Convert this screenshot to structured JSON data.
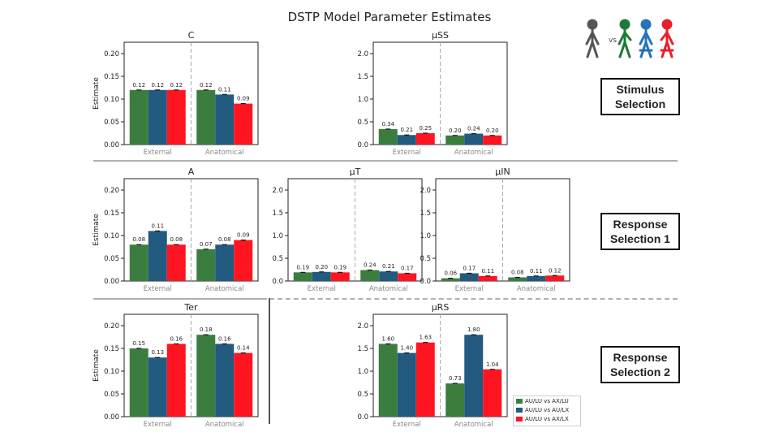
{
  "title": "DSTP Model Parameter Estimates",
  "colors": {
    "green": "#3b7d3f",
    "blue": "#225a80",
    "red": "#ff1421"
  },
  "legend": [
    {
      "label": "AU/LU vs AX/LU",
      "color": "#3b7d3f"
    },
    {
      "label": "AU/LU vs AU/LX",
      "color": "#225a80"
    },
    {
      "label": "AU/LU vs AX/LX",
      "color": "#ff1421"
    }
  ],
  "figure_legend": {
    "vs_label": "vs",
    "icon": "stick-figure-icon"
  },
  "sections": [
    {
      "label_line1": "Stimulus",
      "label_line2": "Selection"
    },
    {
      "label_line1": "Response",
      "label_line2": "Selection 1"
    },
    {
      "label_line1": "Response",
      "label_line2": "Selection 2"
    }
  ],
  "chart_data": [
    {
      "type": "bar",
      "title": "C",
      "ylabel": "Estimate",
      "ylim": [
        0,
        0.225
      ],
      "yticks": [
        "0.00",
        "0.05",
        "0.10",
        "0.15",
        "0.20"
      ],
      "yvals": [
        0,
        0.05,
        0.1,
        0.15,
        0.2
      ],
      "groups": [
        "External",
        "Anatomical"
      ],
      "values": [
        [
          0.12,
          0.12,
          0.12
        ],
        [
          0.12,
          0.11,
          0.09
        ]
      ],
      "labels": [
        [
          "0.12",
          "0.12",
          "0.12"
        ],
        [
          "0.12",
          "0.11",
          "0.09"
        ]
      ]
    },
    {
      "type": "bar",
      "title": "μSS",
      "ylabel": "",
      "ylim": [
        0,
        2.25
      ],
      "yticks": [
        "0.0",
        "0.5",
        "1.0",
        "1.5",
        "2.0"
      ],
      "yvals": [
        0,
        0.5,
        1.0,
        1.5,
        2.0
      ],
      "groups": [
        "External",
        "Anatomical"
      ],
      "values": [
        [
          0.34,
          0.21,
          0.25
        ],
        [
          0.2,
          0.24,
          0.2
        ]
      ],
      "labels": [
        [
          "0.34",
          "0.21",
          "0.25"
        ],
        [
          "0.20",
          "0.24",
          "0.20"
        ]
      ]
    },
    {
      "type": "bar",
      "title": "A",
      "ylabel": "Estimate",
      "ylim": [
        0,
        0.225
      ],
      "yticks": [
        "0.00",
        "0.05",
        "0.10",
        "0.15",
        "0.20"
      ],
      "yvals": [
        0,
        0.05,
        0.1,
        0.15,
        0.2
      ],
      "groups": [
        "External",
        "Anatomical"
      ],
      "values": [
        [
          0.08,
          0.11,
          0.08
        ],
        [
          0.07,
          0.08,
          0.09
        ]
      ],
      "labels": [
        [
          "0.08",
          "0.11",
          "0.08"
        ],
        [
          "0.07",
          "0.08",
          "0.09"
        ]
      ]
    },
    {
      "type": "bar",
      "title": "μT",
      "ylabel": "",
      "ylim": [
        0,
        2.25
      ],
      "yticks": [
        "0.0",
        "0.5",
        "1.0",
        "1.5",
        "2.0"
      ],
      "yvals": [
        0,
        0.5,
        1.0,
        1.5,
        2.0
      ],
      "groups": [
        "External",
        "Anatomical"
      ],
      "values": [
        [
          0.19,
          0.2,
          0.19
        ],
        [
          0.24,
          0.21,
          0.17
        ]
      ],
      "labels": [
        [
          "0.19",
          "0.20",
          "0.19"
        ],
        [
          "0.24",
          "0.21",
          "0.17"
        ]
      ]
    },
    {
      "type": "bar",
      "title": "μIN",
      "ylabel": "",
      "ylim": [
        0,
        2.25
      ],
      "yticks": [
        "0.0",
        "0.5",
        "1.0",
        "1.5",
        "2.0"
      ],
      "yvals": [
        0,
        0.5,
        1.0,
        1.5,
        2.0
      ],
      "groups": [
        "External",
        "Anatomical"
      ],
      "values": [
        [
          0.06,
          0.17,
          0.11
        ],
        [
          0.08,
          0.11,
          0.12
        ]
      ],
      "labels": [
        [
          "0.06",
          "0.17",
          "0.11"
        ],
        [
          "0.08",
          "0.11",
          "0.12"
        ]
      ]
    },
    {
      "type": "bar",
      "title": "Ter",
      "ylabel": "Estimate",
      "ylim": [
        0,
        0.225
      ],
      "yticks": [
        "0.00",
        "0.05",
        "0.10",
        "0.15",
        "0.20"
      ],
      "yvals": [
        0,
        0.05,
        0.1,
        0.15,
        0.2
      ],
      "groups": [
        "External",
        "Anatomical"
      ],
      "values": [
        [
          0.15,
          0.13,
          0.16
        ],
        [
          0.18,
          0.16,
          0.14
        ]
      ],
      "labels": [
        [
          "0.15",
          "0.13",
          "0.16"
        ],
        [
          "0.18",
          "0.16",
          "0.14"
        ]
      ]
    },
    {
      "type": "bar",
      "title": "μRS",
      "ylabel": "",
      "ylim": [
        0,
        2.25
      ],
      "yticks": [
        "0.0",
        "0.5",
        "1.0",
        "1.5",
        "2.0"
      ],
      "yvals": [
        0,
        0.5,
        1.0,
        1.5,
        2.0
      ],
      "groups": [
        "External",
        "Anatomical"
      ],
      "values": [
        [
          1.6,
          1.4,
          1.63
        ],
        [
          0.73,
          1.8,
          1.04
        ]
      ],
      "labels": [
        [
          "1.60",
          "1.40",
          "1.63"
        ],
        [
          "0.73",
          "1.80",
          "1.04"
        ]
      ]
    }
  ]
}
